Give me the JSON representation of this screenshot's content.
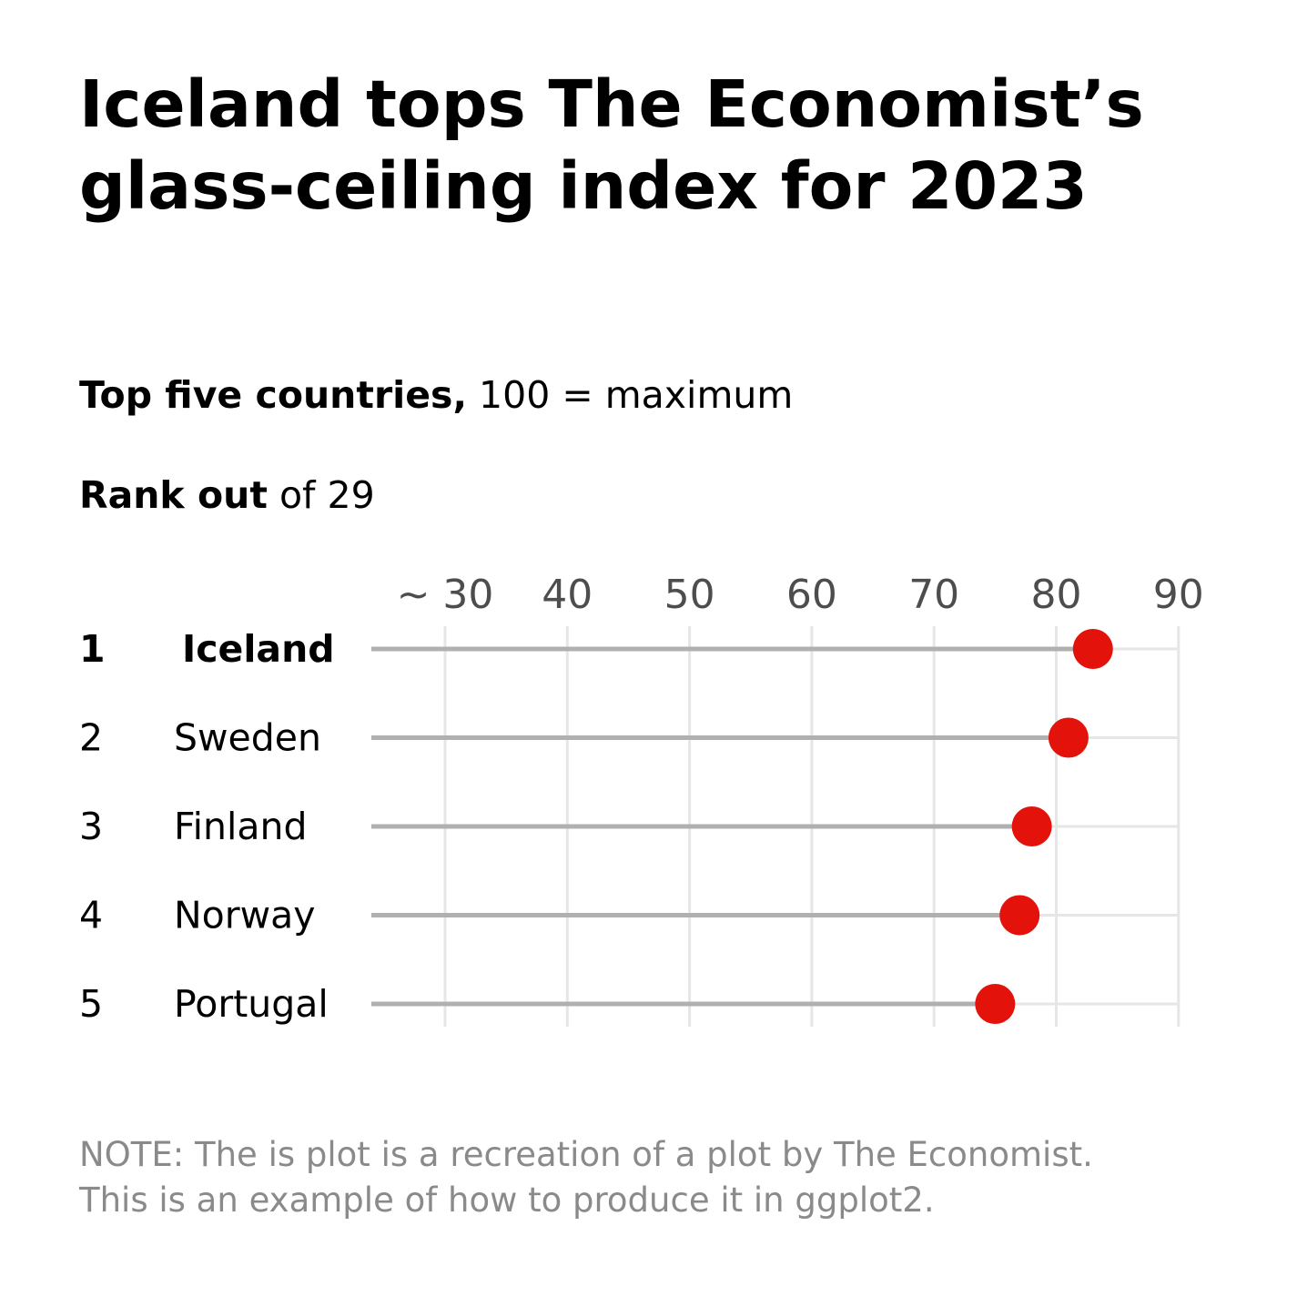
{
  "title": "Iceland tops The Economist’s glass-ceiling index for 2023",
  "subtitle": {
    "bold": "Top five countries,",
    "rest": " 100 = maximum"
  },
  "rank_label": {
    "bold": "Rank out",
    "rest": " of 29"
  },
  "note": {
    "line1": "NOTE: The is plot is a recreation of a plot by The Economist.",
    "line2": "This is an example of how to produce it in ggplot2."
  },
  "chart_data": {
    "type": "lollipop",
    "x_tick_labels": [
      "~ 30",
      "40",
      "50",
      "60",
      "70",
      "80",
      "90"
    ],
    "x_ticks": [
      30,
      40,
      50,
      60,
      70,
      80,
      90
    ],
    "xlim": [
      24,
      90
    ],
    "grid": "vertical and horizontal",
    "rows": [
      {
        "rank": "1",
        "country": "Iceland",
        "value": 83,
        "highlight": true
      },
      {
        "rank": "2",
        "country": "Sweden",
        "value": 81,
        "highlight": false
      },
      {
        "rank": "3",
        "country": "Finland",
        "value": 78,
        "highlight": false
      },
      {
        "rank": "4",
        "country": "Norway",
        "value": 77,
        "highlight": false
      },
      {
        "rank": "5",
        "country": "Portugal",
        "value": 75,
        "highlight": false
      }
    ],
    "colors": {
      "point": "#e3120b",
      "stem": "#b0b0b0",
      "grid": "#e6e6e6",
      "tick_text": "#4d4d4d"
    }
  }
}
